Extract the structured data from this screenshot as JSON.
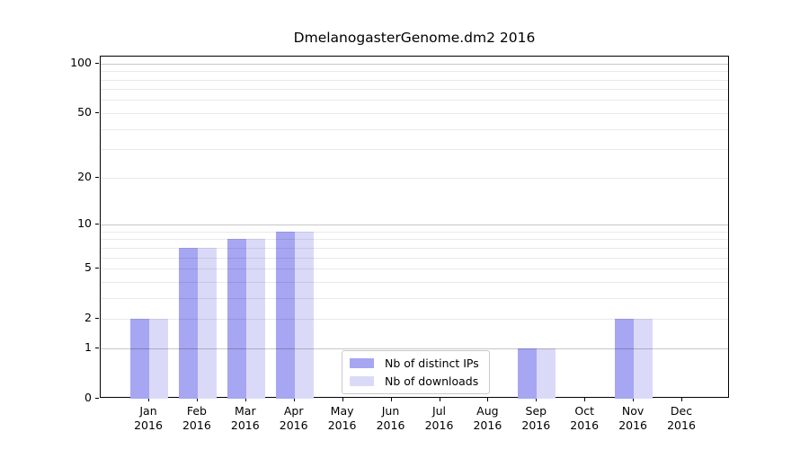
{
  "chart_data": {
    "type": "bar",
    "title": "DmelanogasterGenome.dm2 2016",
    "categories": [
      "Jan 2016",
      "Feb 2016",
      "Mar 2016",
      "Apr 2016",
      "May 2016",
      "Jun 2016",
      "Jul 2016",
      "Aug 2016",
      "Sep 2016",
      "Oct 2016",
      "Nov 2016",
      "Dec 2016"
    ],
    "series": [
      {
        "name": "Nb of distinct IPs",
        "color": "#a6a6f2",
        "values": [
          2,
          7,
          8,
          9,
          0,
          0,
          0,
          0,
          1,
          0,
          2,
          0
        ]
      },
      {
        "name": "Nb of downloads",
        "color": "#dadaf8",
        "values": [
          2,
          7,
          8,
          9,
          0,
          0,
          0,
          0,
          1,
          0,
          2,
          0
        ]
      }
    ],
    "xlabel": "",
    "ylabel": "",
    "yscale": "log1p",
    "ylim": [
      0,
      110
    ],
    "yticks": [
      0,
      1,
      2,
      5,
      10,
      20,
      50,
      100
    ],
    "gridlines_major": [
      1,
      10,
      100
    ],
    "gridlines_minor": [
      2,
      3,
      4,
      5,
      6,
      7,
      8,
      9,
      20,
      30,
      40,
      50,
      60,
      70,
      80,
      90
    ],
    "grid": true,
    "legend": {
      "position": "lower-center-inside",
      "entries": [
        "Nb of distinct IPs",
        "Nb of downloads"
      ]
    }
  },
  "colors": {
    "axis": "#000000",
    "grid_major": "#c9c9c9",
    "grid_minor": "#e9e9e9",
    "legend_border": "#c9c9c9",
    "background": "#ffffff"
  }
}
